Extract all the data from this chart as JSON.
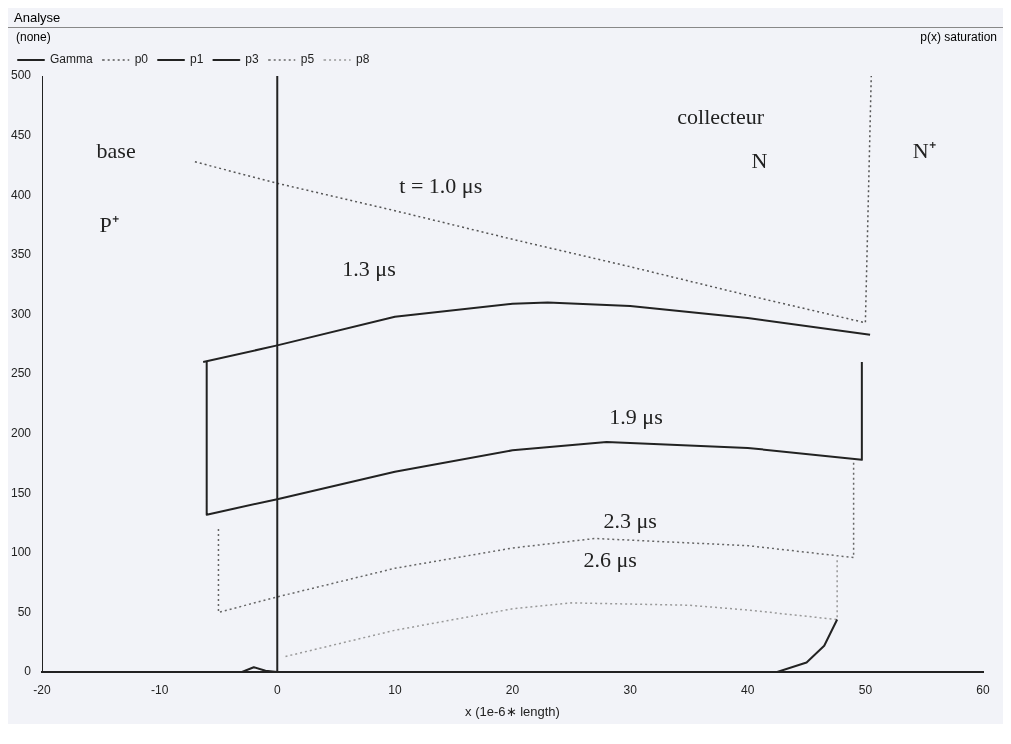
{
  "chart_data": {
    "type": "line",
    "xlabel": "x (1e-6∗ length)",
    "xlim": [
      -20,
      60
    ],
    "xticks": [
      -20,
      -10,
      0,
      10,
      20,
      30,
      40,
      50,
      60
    ],
    "ylim": [
      0,
      500
    ],
    "yticks": [
      0,
      50,
      100,
      150,
      200,
      250,
      300,
      350,
      400,
      450,
      500
    ],
    "grid": false,
    "legend": "top",
    "marker": "none",
    "series": [
      {
        "name": "Gamma",
        "color": "#222222",
        "line_style": "solid",
        "x": [
          -20,
          -3,
          -2,
          -1,
          0,
          35,
          40,
          42.5,
          45,
          46.5,
          47.6
        ],
        "values": [
          0,
          0,
          4,
          1,
          0,
          0,
          0,
          0,
          8,
          22,
          44
        ]
      },
      {
        "name": "p0",
        "color": "#555555",
        "line_style": "dotted",
        "x": [
          -7,
          0,
          10,
          20,
          30,
          40,
          50,
          50.5
        ],
        "values": [
          428,
          410,
          387,
          363,
          340,
          316,
          293,
          500
        ]
      },
      {
        "name": "p1",
        "color": "#222222",
        "line_style": "solid",
        "x": [
          -6.3,
          0,
          10,
          20,
          23,
          30,
          40,
          50.4
        ],
        "values": [
          260,
          274,
          298,
          309,
          310,
          307,
          297,
          283
        ]
      },
      {
        "name": "p3",
        "color": "#222222",
        "line_style": "solid",
        "x": [
          -6,
          -6,
          0,
          10,
          20,
          28,
          40,
          49.7,
          49.7
        ],
        "values": [
          260,
          132,
          145,
          168,
          186,
          193,
          188,
          178,
          260
        ]
      },
      {
        "name": "p5",
        "color": "#666666",
        "line_style": "dotted",
        "x": [
          -5,
          -5,
          0,
          10,
          20,
          27,
          40,
          49,
          49
        ],
        "values": [
          120,
          50,
          63,
          87,
          104,
          112,
          106,
          96,
          178
        ]
      },
      {
        "name": "p8",
        "color": "#999999",
        "line_style": "dotted",
        "x": [
          0.7,
          10,
          20,
          25,
          35,
          40,
          47.6,
          47.6
        ],
        "values": [
          13,
          35,
          53,
          58,
          56,
          52,
          44,
          96
        ]
      }
    ],
    "ref_lines": [
      {
        "axis": "x",
        "value": 0,
        "color": "#222222"
      }
    ],
    "annotations": [
      "Analyse",
      "(none)",
      "p(x) saturation",
      "base",
      "P⁺",
      "collecteur",
      "N",
      "N⁺",
      "t = 1.0 μs",
      "1.3 μs",
      "1.9 μs",
      "2.3 μs",
      "2.6 μs"
    ]
  }
}
